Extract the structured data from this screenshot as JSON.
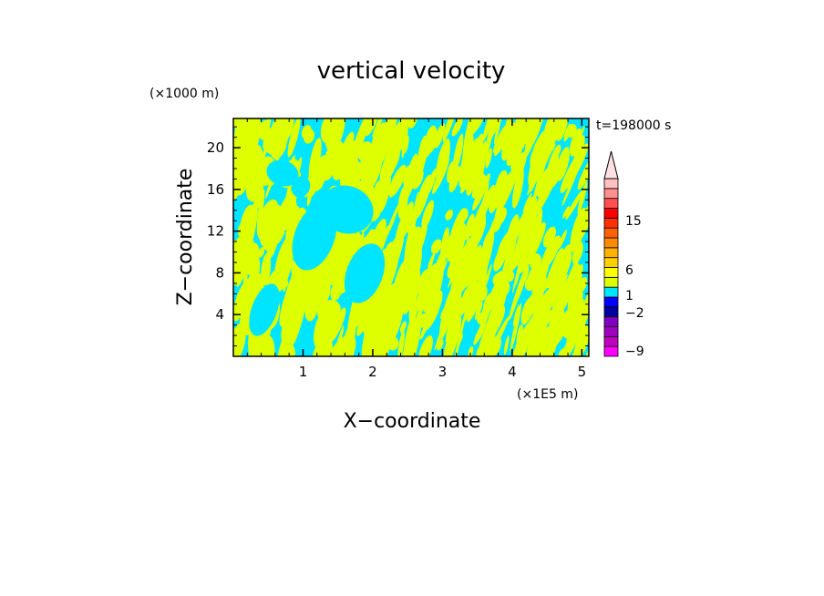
{
  "chart_data": {
    "type": "heatmap",
    "title": "vertical velocity",
    "xlabel": "X−coordinate",
    "ylabel": "Z−coordinate",
    "x_unit": "(×1E5 m)",
    "y_unit": "(×1000 m)",
    "time_label": "t=198000 s",
    "xlim": [
      0,
      5.1
    ],
    "ylim": [
      0,
      22.8
    ],
    "x_ticks": [
      1,
      2,
      3,
      4,
      5
    ],
    "y_ticks": [
      4,
      8,
      12,
      16,
      20
    ],
    "colorbar": {
      "tick_labels": [
        "15",
        "6",
        "1",
        "−2",
        "−9"
      ],
      "bands": [
        {
          "color": "#ff00ff"
        },
        {
          "color": "#c000c0"
        },
        {
          "color": "#a000c0"
        },
        {
          "color": "#8000c0"
        },
        {
          "color": "#0000a0"
        },
        {
          "color": "#0000ff"
        },
        {
          "color": "#00e5ff"
        },
        {
          "color": "#dfff00"
        },
        {
          "color": "#ffff00"
        },
        {
          "color": "#ffd000"
        },
        {
          "color": "#ffb000"
        },
        {
          "color": "#ff8c00"
        },
        {
          "color": "#ff6000"
        },
        {
          "color": "#ff3000"
        },
        {
          "color": "#ff0000"
        },
        {
          "color": "#ff5050"
        },
        {
          "color": "#ff9090"
        },
        {
          "color": "#ffc0c0"
        }
      ],
      "extend_max_color": "#ffe0e0"
    },
    "field_colors": {
      "positive": "#ddff00",
      "negative": "#00e5ff"
    }
  }
}
